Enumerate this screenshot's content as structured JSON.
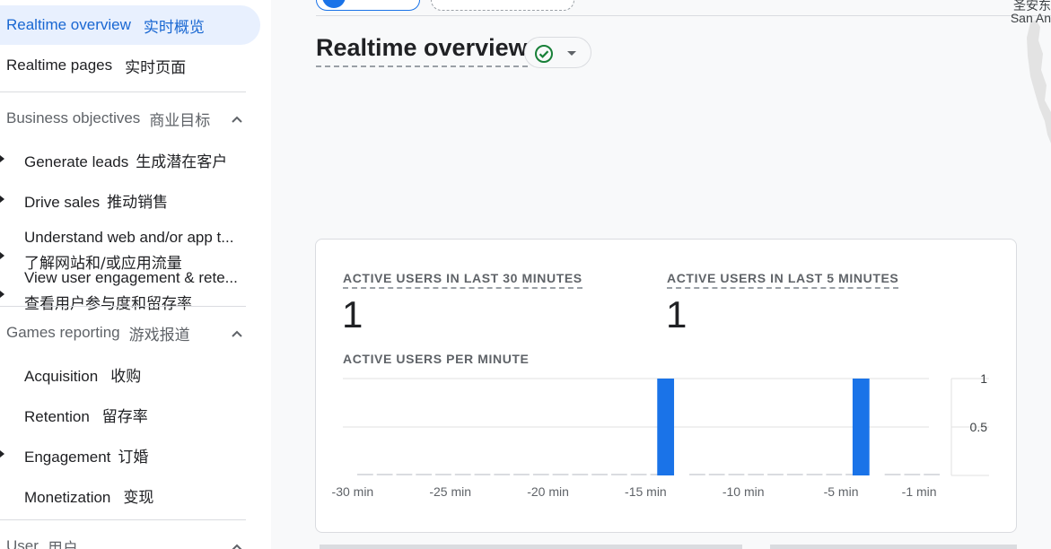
{
  "sidebar": {
    "top_items": [
      {
        "en": "Realtime overview",
        "zh": "实时概览",
        "active": true
      },
      {
        "en": "Realtime pages",
        "zh": "实时页面",
        "active": false
      }
    ],
    "sections": [
      {
        "en": "Business objectives",
        "zh": "商业目标",
        "items": [
          {
            "en": "Generate leads",
            "zh": "生成潜在客户"
          },
          {
            "en": "Drive sales",
            "zh": "推动销售"
          },
          {
            "en": "Understand web and/or app t...",
            "zh": "了解网站和/或应用流量"
          },
          {
            "en": "View user engagement & rete...",
            "zh": "查看用户参与度和留存率"
          }
        ]
      },
      {
        "en": "Games reporting",
        "zh": "游戏报道",
        "items": [
          {
            "en": "Acquisition",
            "zh": "收购"
          },
          {
            "en": "Retention",
            "zh": "留存率"
          },
          {
            "en": "Engagement",
            "zh": "订婚"
          },
          {
            "en": "Monetization",
            "zh": "变现"
          }
        ]
      },
      {
        "en": "User",
        "zh": "用户",
        "items": []
      }
    ]
  },
  "main": {
    "title": "Realtime overview",
    "map_labels": [
      "圣安东",
      "San An"
    ]
  },
  "card": {
    "metric_30": {
      "label": "ACTIVE USERS IN LAST 30 MINUTES",
      "value": "1"
    },
    "metric_5": {
      "label": "ACTIVE USERS IN LAST 5 MINUTES",
      "value": "1"
    },
    "chart_label": "ACTIVE USERS PER MINUTE"
  },
  "colors": {
    "accent": "#1a73e8",
    "bar": "#1a73e8",
    "baseline": "#dadce0",
    "check": "#188038"
  },
  "chart_data": {
    "type": "bar",
    "title": "ACTIVE USERS PER MINUTE",
    "categories": [
      -30,
      -29,
      -28,
      -27,
      -26,
      -25,
      -24,
      -23,
      -22,
      -21,
      -20,
      -19,
      -18,
      -17,
      -16,
      -15,
      -14,
      -13,
      -12,
      -11,
      -10,
      -9,
      -8,
      -7,
      -6,
      -5,
      -4,
      -3,
      -2,
      -1
    ],
    "values": [
      0,
      0,
      0,
      0,
      0,
      0,
      0,
      0,
      0,
      0,
      0,
      0,
      0,
      0,
      0,
      0,
      1,
      0,
      0,
      0,
      0,
      0,
      0,
      0,
      0,
      0,
      1,
      0,
      0,
      0
    ],
    "x_tick_labels": [
      "-30 min",
      "-25 min",
      "-20 min",
      "-15 min",
      "-10 min",
      "-5 min",
      "-1 min"
    ],
    "y_tick_labels": [
      "1",
      "0.5"
    ],
    "ylim": [
      0,
      1
    ],
    "grid": true
  }
}
